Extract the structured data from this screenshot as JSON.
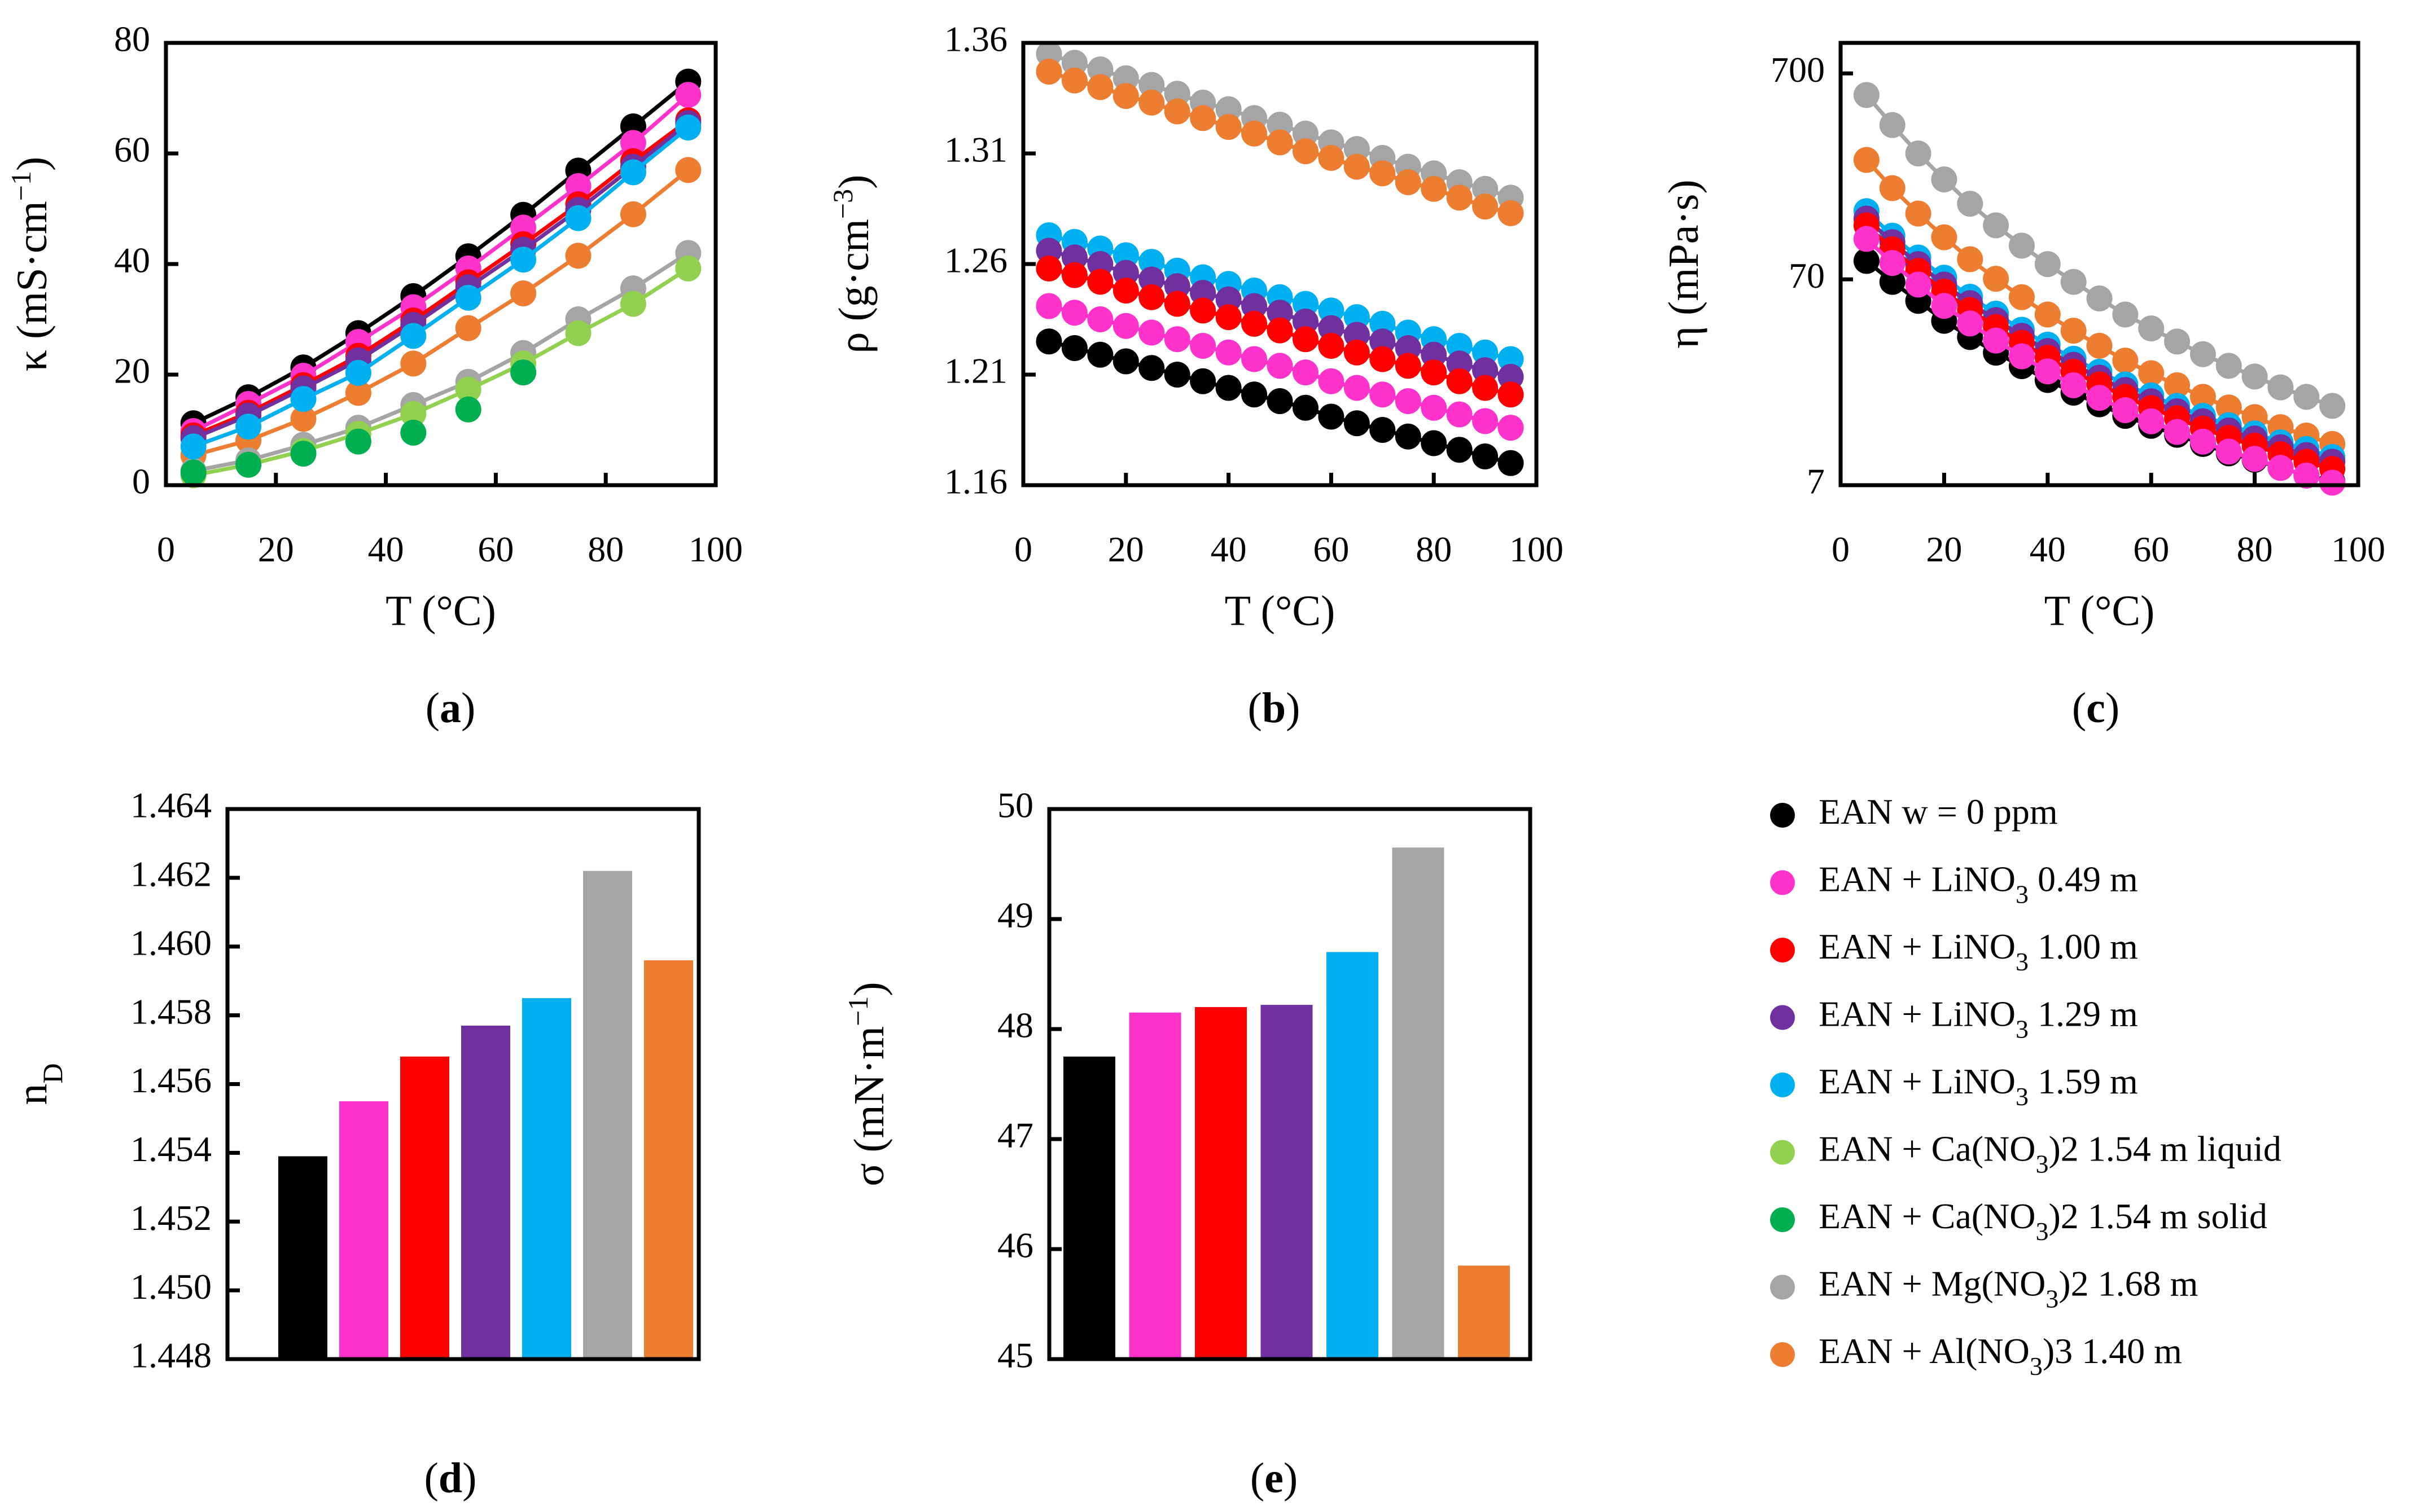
{
  "series_meta": [
    {
      "id": "ean",
      "color": "#000000",
      "label": {
        "pre": "EAN w = 0 ppm",
        "sub": "",
        "post": ""
      }
    },
    {
      "id": "li049",
      "color": "#ff33cc",
      "label": {
        "pre": "EAN + LiNO",
        "sub": "3",
        "post": " 0.49 m"
      }
    },
    {
      "id": "li100",
      "color": "#ff0000",
      "label": {
        "pre": "EAN + LiNO",
        "sub": "3",
        "post": " 1.00 m"
      }
    },
    {
      "id": "li129",
      "color": "#7030a0",
      "label": {
        "pre": "EAN + LiNO",
        "sub": "3",
        "post": " 1.29 m"
      }
    },
    {
      "id": "li159",
      "color": "#00b0f0",
      "label": {
        "pre": "EAN + LiNO",
        "sub": "3",
        "post": " 1.59 m"
      }
    },
    {
      "id": "ca_liq",
      "color": "#92d050",
      "label": {
        "pre": "EAN + Ca(NO",
        "sub": "3",
        "post": ")2 1.54 m liquid",
        "post_parts": [
          ")",
          "2",
          " 1.54 m liquid"
        ]
      }
    },
    {
      "id": "ca_sol",
      "color": "#00b050",
      "label": {
        "pre": "EAN + Ca(NO",
        "sub": "3",
        "post": ")2 1.54 m solid",
        "post_parts": [
          ")",
          "2",
          " 1.54 m solid"
        ]
      }
    },
    {
      "id": "mg",
      "color": "#a5a5a5",
      "label": {
        "pre": "EAN + Mg(NO",
        "sub": "3",
        "post": ")2 1.68 m",
        "post_parts": [
          ")",
          "2",
          " 1.68 m"
        ]
      }
    },
    {
      "id": "al",
      "color": "#ed7d31",
      "label": {
        "pre": "EAN + Al(NO",
        "sub": "3",
        "post": ")3 1.40 m",
        "post_parts": [
          ")",
          "3",
          " 1.40 m"
        ]
      }
    }
  ],
  "chart_data": [
    {
      "panel": {
        "open": "(",
        "letter": "a",
        "close": ")"
      },
      "type": "line",
      "xlabel": "T (°C)",
      "ylabel": {
        "main": "κ (mS·cm",
        "sup": "−1",
        "end": ")"
      },
      "xlim": [
        0,
        100
      ],
      "ylim": [
        0,
        80
      ],
      "yscale": "linear",
      "xticks": [
        "0",
        "20",
        "40",
        "60",
        "80",
        "100"
      ],
      "yticks": [
        "0",
        "20",
        "40",
        "60",
        "80"
      ],
      "series": [
        {
          "id": "al",
          "x": [
            5,
            15,
            25,
            35,
            45,
            55,
            65,
            75,
            85,
            95
          ],
          "y": [
            5.4,
            8.1,
            12.0,
            16.7,
            22.0,
            28.4,
            34.7,
            41.5,
            49.0,
            57.0
          ]
        },
        {
          "id": "mg",
          "x": [
            5,
            15,
            25,
            35,
            45,
            55,
            65,
            75,
            85,
            95
          ],
          "y": [
            2.6,
            4.5,
            7.3,
            10.4,
            14.5,
            18.7,
            23.9,
            30.0,
            35.6,
            42.0
          ]
        },
        {
          "id": "ca_liq",
          "x": [
            5,
            15,
            25,
            35,
            45,
            55,
            65,
            75,
            85,
            95
          ],
          "y": [
            1.8,
            3.7,
            6.2,
            9.3,
            12.9,
            17.3,
            22.0,
            27.5,
            32.8,
            39.2
          ]
        },
        {
          "id": "ca_sol",
          "x": [
            5,
            15,
            25,
            35,
            45,
            55,
            65
          ],
          "y": [
            2.3,
            3.7,
            5.7,
            7.9,
            9.5,
            13.7,
            20.4
          ],
          "no_line": true
        },
        {
          "id": "ean",
          "x": [
            5,
            15,
            25,
            35,
            45,
            55,
            65,
            75,
            85,
            95
          ],
          "y": [
            11.2,
            15.9,
            21.3,
            27.5,
            34.2,
            41.4,
            48.9,
            56.9,
            64.9,
            73.0
          ]
        },
        {
          "id": "li049",
          "x": [
            5,
            15,
            25,
            35,
            45,
            55,
            65,
            75,
            85,
            95
          ],
          "y": [
            9.8,
            14.7,
            19.8,
            25.9,
            32.2,
            39.2,
            46.6,
            54.1,
            61.9,
            70.6
          ]
        },
        {
          "id": "li100",
          "x": [
            5,
            15,
            25,
            35,
            45,
            55,
            65,
            75,
            85,
            95
          ],
          "y": [
            9.0,
            13.1,
            18.1,
            23.4,
            29.8,
            36.7,
            43.6,
            50.8,
            58.6,
            66.0
          ]
        },
        {
          "id": "li129",
          "x": [
            5,
            15,
            25,
            35,
            45,
            55,
            65,
            75,
            85,
            95
          ],
          "y": [
            8.5,
            12.6,
            17.5,
            22.6,
            29.0,
            35.8,
            42.6,
            49.8,
            57.6,
            65.5
          ]
        },
        {
          "id": "li159",
          "x": [
            5,
            15,
            25,
            35,
            45,
            55,
            65,
            75,
            85,
            95
          ],
          "y": [
            7.0,
            10.6,
            15.6,
            20.3,
            27.0,
            33.9,
            40.8,
            48.3,
            56.6,
            64.7
          ]
        }
      ]
    },
    {
      "panel": {
        "open": "(",
        "letter": "b",
        "close": ")"
      },
      "type": "line",
      "xlabel": "T (°C)",
      "ylabel": {
        "main": "ρ (g·cm",
        "sup": "−3",
        "end": ")"
      },
      "xlim": [
        0,
        100
      ],
      "ylim": [
        1.16,
        1.36
      ],
      "yscale": "linear",
      "xticks": [
        "0",
        "20",
        "40",
        "60",
        "80",
        "100"
      ],
      "yticks": [
        "1.16",
        "1.21",
        "1.26",
        "1.31",
        "1.36"
      ],
      "series": [
        {
          "id": "mg",
          "x": [
            5,
            10,
            15,
            20,
            25,
            30,
            35,
            40,
            45,
            50,
            55,
            60,
            65,
            70,
            75,
            80,
            85,
            90,
            95
          ],
          "y": [
            1.355,
            1.351,
            1.348,
            1.344,
            1.341,
            1.337,
            1.333,
            1.33,
            1.326,
            1.323,
            1.319,
            1.315,
            1.312,
            1.308,
            1.304,
            1.301,
            1.297,
            1.294,
            1.29
          ]
        },
        {
          "id": "al",
          "x": [
            5,
            10,
            15,
            20,
            25,
            30,
            35,
            40,
            45,
            50,
            55,
            60,
            65,
            70,
            75,
            80,
            85,
            90,
            95
          ],
          "y": [
            1.347,
            1.343,
            1.34,
            1.336,
            1.333,
            1.329,
            1.326,
            1.322,
            1.319,
            1.315,
            1.311,
            1.308,
            1.304,
            1.301,
            1.297,
            1.294,
            1.29,
            1.286,
            1.283
          ]
        },
        {
          "id": "ean",
          "x": [
            5,
            10,
            15,
            20,
            25,
            30,
            35,
            40,
            45,
            50,
            55,
            60,
            65,
            70,
            75,
            80,
            85,
            90,
            95
          ],
          "y": [
            1.225,
            1.222,
            1.219,
            1.216,
            1.213,
            1.21,
            1.207,
            1.204,
            1.201,
            1.198,
            1.195,
            1.191,
            1.188,
            1.185,
            1.182,
            1.179,
            1.176,
            1.173,
            1.17
          ]
        },
        {
          "id": "li159",
          "x": [
            5,
            10,
            15,
            20,
            25,
            30,
            35,
            40,
            45,
            50,
            55,
            60,
            65,
            70,
            75,
            80,
            85,
            90,
            95
          ],
          "y": [
            1.273,
            1.27,
            1.267,
            1.264,
            1.261,
            1.257,
            1.254,
            1.251,
            1.248,
            1.245,
            1.242,
            1.239,
            1.236,
            1.233,
            1.229,
            1.226,
            1.223,
            1.22,
            1.217
          ]
        },
        {
          "id": "li129",
          "x": [
            5,
            10,
            15,
            20,
            25,
            30,
            35,
            40,
            45,
            50,
            55,
            60,
            65,
            70,
            75,
            80,
            85,
            90,
            95
          ],
          "y": [
            1.266,
            1.263,
            1.26,
            1.256,
            1.253,
            1.25,
            1.247,
            1.244,
            1.241,
            1.238,
            1.234,
            1.231,
            1.228,
            1.225,
            1.222,
            1.219,
            1.215,
            1.212,
            1.209
          ]
        },
        {
          "id": "li100",
          "x": [
            5,
            10,
            15,
            20,
            25,
            30,
            35,
            40,
            45,
            50,
            55,
            60,
            65,
            70,
            75,
            80,
            85,
            90,
            95
          ],
          "y": [
            1.258,
            1.255,
            1.252,
            1.248,
            1.245,
            1.242,
            1.239,
            1.236,
            1.233,
            1.23,
            1.226,
            1.223,
            1.22,
            1.217,
            1.214,
            1.211,
            1.207,
            1.204,
            1.201
          ]
        },
        {
          "id": "li049",
          "x": [
            5,
            10,
            15,
            20,
            25,
            30,
            35,
            40,
            45,
            50,
            55,
            60,
            65,
            70,
            75,
            80,
            85,
            90,
            95
          ],
          "y": [
            1.241,
            1.238,
            1.235,
            1.232,
            1.229,
            1.226,
            1.223,
            1.22,
            1.217,
            1.214,
            1.211,
            1.207,
            1.204,
            1.201,
            1.198,
            1.195,
            1.192,
            1.189,
            1.186
          ]
        }
      ]
    },
    {
      "panel": {
        "open": "(",
        "letter": "c",
        "close": ")"
      },
      "type": "line",
      "xlabel": "T (°C)",
      "ylabel": {
        "main": "η (mPa·s)",
        "sup": "",
        "end": ""
      },
      "xlim": [
        0,
        100
      ],
      "ylim": [
        7,
        985
      ],
      "yscale": "log",
      "xticks": [
        "0",
        "20",
        "40",
        "60",
        "80",
        "100"
      ],
      "yticks": [
        "7",
        "70",
        "700"
      ],
      "series": [
        {
          "id": "mg",
          "x": [
            5,
            10,
            15,
            20,
            25,
            30,
            35,
            40,
            45,
            50,
            55,
            60,
            65,
            70,
            75,
            80,
            85,
            90,
            95
          ],
          "y": [
            550,
            393,
            286,
            214,
            163,
            128,
            102,
            83,
            68,
            56.5,
            47.2,
            40.4,
            34.9,
            30.3,
            26.6,
            23.6,
            20.9,
            18.8,
            17.0
          ]
        },
        {
          "id": "al",
          "x": [
            5,
            10,
            15,
            20,
            25,
            30,
            35,
            40,
            45,
            50,
            55,
            60,
            65,
            70,
            75,
            80,
            85,
            90,
            95
          ],
          "y": [
            266,
            194,
            146,
            112,
            87.6,
            70.4,
            57.3,
            47.2,
            39.4,
            33.3,
            28.2,
            24.5,
            21.4,
            18.8,
            16.7,
            15.0,
            13.4,
            12.2,
            11.1
          ]
        },
        {
          "id": "ean",
          "x": [
            5,
            10,
            15,
            20,
            25,
            30,
            35,
            40,
            45,
            50,
            55,
            60,
            65,
            70,
            75,
            80,
            85,
            90,
            95
          ],
          "y": [
            86,
            68,
            55,
            44,
            36.7,
            30.8,
            26.5,
            22.7,
            19.7,
            17.3,
            15.2,
            13.6,
            12.3,
            11.1,
            10.0,
            9.3,
            8.5,
            7.8,
            7.3
          ]
        },
        {
          "id": "li159",
          "x": [
            5,
            10,
            15,
            20,
            25,
            30,
            35,
            40,
            45,
            50,
            55,
            60,
            65,
            70,
            75,
            80,
            85,
            90,
            95
          ],
          "y": [
            150,
            114,
            89.3,
            71.3,
            57.6,
            47.7,
            39.8,
            33.7,
            28.8,
            24.9,
            21.6,
            19.1,
            17.0,
            15.2,
            13.7,
            12.5,
            11.3,
            10.5,
            9.6
          ]
        },
        {
          "id": "li129",
          "x": [
            5,
            10,
            15,
            20,
            25,
            30,
            35,
            40,
            45,
            50,
            55,
            60,
            65,
            70,
            75,
            80,
            85,
            90,
            95
          ],
          "y": [
            138,
            106,
            83,
            66,
            53.6,
            44.4,
            37.2,
            31.4,
            26.9,
            23.3,
            20.3,
            17.9,
            16.0,
            14.3,
            12.9,
            11.8,
            10.7,
            9.8,
            9.1
          ]
        },
        {
          "id": "li100",
          "x": [
            5,
            10,
            15,
            20,
            25,
            30,
            35,
            40,
            45,
            50,
            55,
            60,
            65,
            70,
            75,
            80,
            85,
            90,
            95
          ],
          "y": [
            128,
            98,
            77,
            61,
            49.6,
            41.1,
            34.4,
            29.1,
            24.9,
            21.6,
            18.8,
            16.6,
            14.8,
            13.2,
            11.9,
            10.9,
            9.9,
            9.1,
            8.4
          ]
        },
        {
          "id": "li049",
          "x": [
            5,
            10,
            15,
            20,
            25,
            30,
            35,
            40,
            45,
            50,
            55,
            60,
            65,
            70,
            75,
            80,
            85,
            90,
            95
          ],
          "y": [
            110,
            84,
            66,
            52,
            42.7,
            35.3,
            29.6,
            25.0,
            21.4,
            18.6,
            16.2,
            14.3,
            12.7,
            11.4,
            10.2,
            9.4,
            8.5,
            7.8,
            7.2
          ]
        }
      ]
    },
    {
      "panel": {
        "open": "(",
        "letter": "d",
        "close": ")"
      },
      "type": "bar",
      "xlabel": "",
      "ylabel": {
        "main": "n",
        "sub": "D"
      },
      "ylim": [
        1.448,
        1.464
      ],
      "yscale": "linear",
      "yticks": [
        "1.448",
        "1.450",
        "1.452",
        "1.454",
        "1.456",
        "1.458",
        "1.460",
        "1.462",
        "1.464"
      ],
      "categories": [
        "ean",
        "li049",
        "li100",
        "li129",
        "li159",
        "mg",
        "al"
      ],
      "values": [
        1.4539,
        1.4555,
        1.4568,
        1.4577,
        1.4585,
        1.4622,
        1.4596
      ]
    },
    {
      "panel": {
        "open": "(",
        "letter": "e",
        "close": ")"
      },
      "type": "bar",
      "xlabel": "",
      "ylabel": {
        "main": "σ (mN·m",
        "sup": "−1",
        "end": ")"
      },
      "ylim": [
        45,
        50
      ],
      "yscale": "linear",
      "yticks": [
        "45",
        "46",
        "47",
        "48",
        "49",
        "50"
      ],
      "categories": [
        "ean",
        "li049",
        "li100",
        "li129",
        "li159",
        "mg",
        "al"
      ],
      "values": [
        47.75,
        48.15,
        48.2,
        48.22,
        48.7,
        49.65,
        45.85
      ]
    }
  ]
}
